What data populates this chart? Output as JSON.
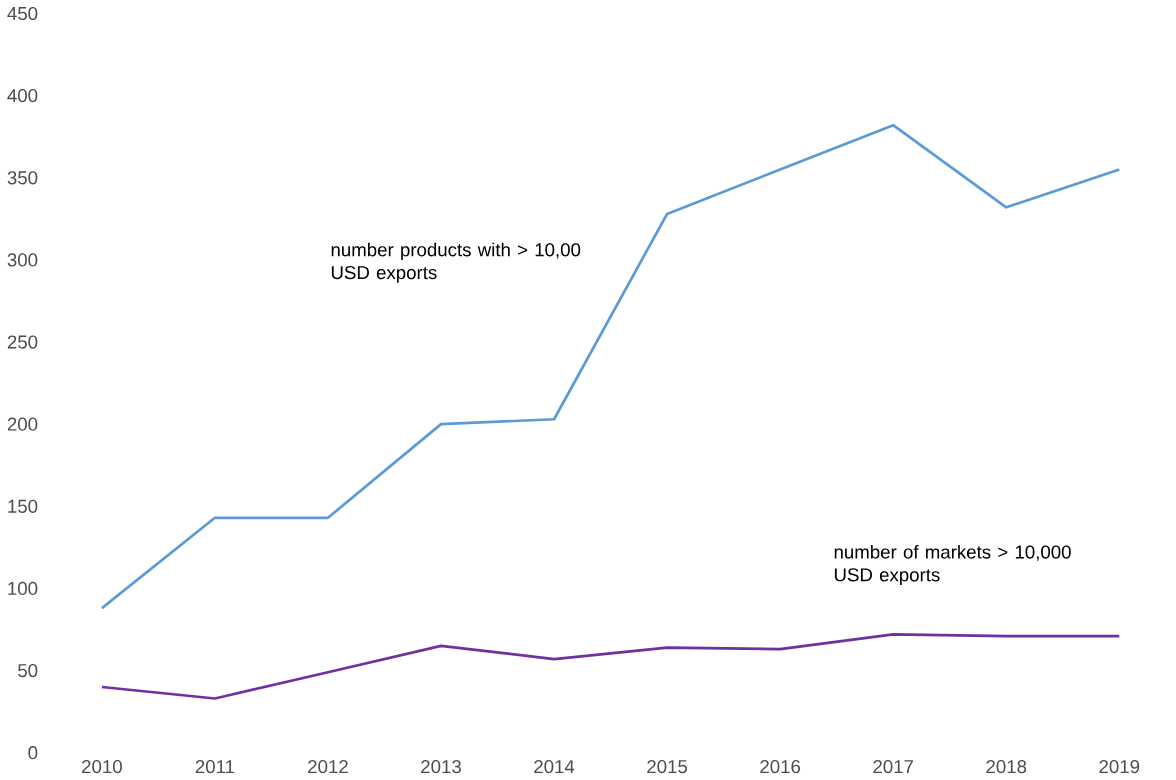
{
  "chart_data": {
    "type": "line",
    "categories": [
      "2010",
      "2011",
      "2012",
      "2013",
      "2014",
      "2015",
      "2016",
      "2017",
      "2018",
      "2019"
    ],
    "series": [
      {
        "name": "number products with > 10,00 USD exports",
        "color": "#5b9bd5",
        "values": [
          88,
          143,
          143,
          200,
          203,
          328,
          355,
          382,
          332,
          355
        ]
      },
      {
        "name": "number of markets > 10,000 USD exports",
        "color": "#7030a0",
        "values": [
          40,
          33,
          49,
          65,
          57,
          64,
          63,
          72,
          71,
          71
        ]
      }
    ],
    "ylim": [
      0,
      450
    ],
    "yticks": [
      0,
      50,
      100,
      150,
      200,
      250,
      300,
      350,
      400,
      450
    ],
    "grid": false,
    "legend": false,
    "marker": "none",
    "line_style": "solid"
  }
}
